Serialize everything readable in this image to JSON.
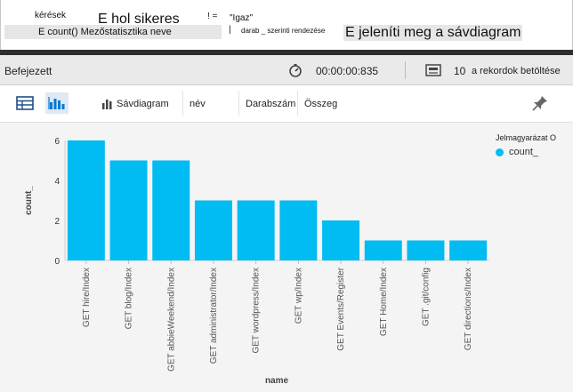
{
  "query": {
    "table": "kérések",
    "where_text": "E hol sikeres",
    "operator": "! =",
    "value": "\"Igaz\"",
    "summarize_text": "E count() Mezőstatisztika neve",
    "pipe": "|",
    "sort_text": "darab _ szerinti rendezése",
    "render_text": "E jeleníti meg a sávdiagram"
  },
  "status": {
    "state": "Befejezett",
    "timer_icon": "stopwatch-icon",
    "duration": "00:00:00:835",
    "records_icon": "records-icon",
    "record_count": "10",
    "records_label": "a rekordok betöltése"
  },
  "toolbar": {
    "table_view_icon": "table-icon",
    "chart_view_icon": "bar-chart-icon",
    "chart_type_label": "Sávdiagram",
    "x_field": "név",
    "count_label": "Darabszám",
    "sum_label": "Összeg",
    "pin_icon": "pin-icon"
  },
  "legend": {
    "title": "Jelmagyarázat O",
    "series_name": "count_"
  },
  "colors": {
    "bar": "#00bcf2",
    "accent": "#0078d4",
    "query_bg": "#e6e6e6"
  },
  "chart_data": {
    "type": "bar",
    "xlabel": "name",
    "ylabel": "count_",
    "ylim": [
      0,
      6
    ],
    "yticks": [
      "0",
      "2",
      "4",
      "6"
    ],
    "grid": false,
    "legend_position": "top-right",
    "categories": [
      "GET hire/Index",
      "GET blog/Index",
      "GET abbieWeekend/Index",
      "GET administrator/Index",
      "GET wordpress/Index",
      "GET wp/Index",
      "GET Events/Register",
      "GET Home/Index",
      "GET .git/config",
      "GET directions/Index"
    ],
    "series": [
      {
        "name": "count_",
        "values": [
          6,
          5,
          5,
          3,
          3,
          3,
          2,
          1,
          1,
          1
        ]
      }
    ]
  }
}
